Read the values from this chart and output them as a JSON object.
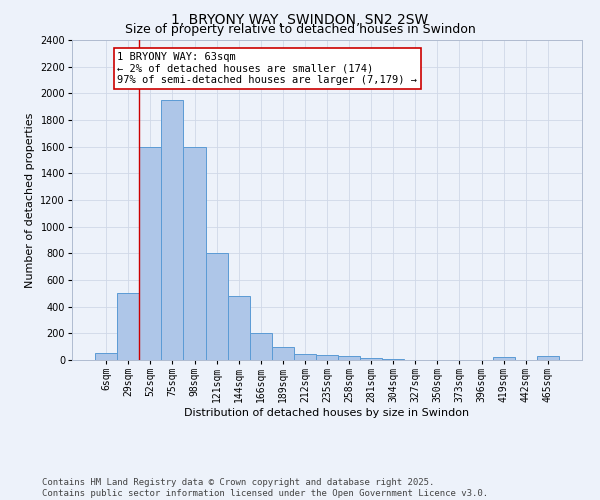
{
  "title": "1, BRYONY WAY, SWINDON, SN2 2SW",
  "subtitle": "Size of property relative to detached houses in Swindon",
  "xlabel": "Distribution of detached houses by size in Swindon",
  "ylabel": "Number of detached properties",
  "categories": [
    "6sqm",
    "29sqm",
    "52sqm",
    "75sqm",
    "98sqm",
    "121sqm",
    "144sqm",
    "166sqm",
    "189sqm",
    "212sqm",
    "235sqm",
    "258sqm",
    "281sqm",
    "304sqm",
    "327sqm",
    "350sqm",
    "373sqm",
    "396sqm",
    "419sqm",
    "442sqm",
    "465sqm"
  ],
  "values": [
    55,
    500,
    1600,
    1950,
    1600,
    800,
    480,
    200,
    95,
    45,
    35,
    30,
    18,
    10,
    0,
    0,
    0,
    0,
    20,
    0,
    30
  ],
  "bar_color": "#aec6e8",
  "bar_edge_color": "#5b9bd5",
  "property_line_x": 1.5,
  "property_label": "1 BRYONY WAY: 63sqm",
  "annotation_line1": "← 2% of detached houses are smaller (174)",
  "annotation_line2": "97% of semi-detached houses are larger (7,179) →",
  "annotation_box_color": "#ffffff",
  "annotation_box_edge": "#cc0000",
  "property_line_color": "#cc0000",
  "grid_color": "#d0d8e8",
  "bg_color": "#edf2fa",
  "fig_bg_color": "#edf2fa",
  "ylim": [
    0,
    2400
  ],
  "yticks": [
    0,
    200,
    400,
    600,
    800,
    1000,
    1200,
    1400,
    1600,
    1800,
    2000,
    2200,
    2400
  ],
  "footer": "Contains HM Land Registry data © Crown copyright and database right 2025.\nContains public sector information licensed under the Open Government Licence v3.0.",
  "title_fontsize": 10,
  "subtitle_fontsize": 9,
  "xlabel_fontsize": 8,
  "ylabel_fontsize": 8,
  "tick_fontsize": 7,
  "footer_fontsize": 6.5,
  "annot_fontsize": 7.5
}
